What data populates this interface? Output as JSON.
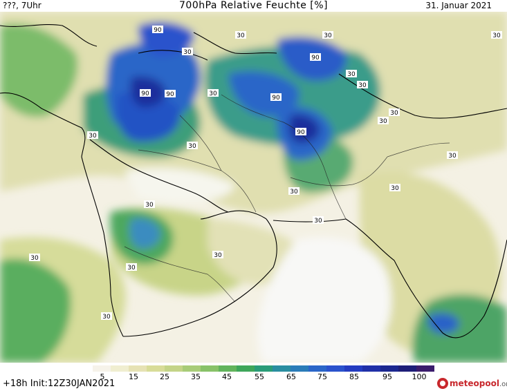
{
  "header": {
    "left": "???, 7Uhr",
    "title": "700hPa Relative Feuchte [%]",
    "date": "31. Januar 2021"
  },
  "footer": {
    "init": "+18h  Init:12Z30JAN2021"
  },
  "logo": {
    "name": "meteopool",
    "domain": ".org",
    "icon": "meteopool-logo-icon"
  },
  "colorbar": {
    "ticks": [
      "5",
      "15",
      "25",
      "35",
      "45",
      "55",
      "65",
      "75",
      "85",
      "95",
      "100"
    ],
    "colors": [
      "#ffffff",
      "#f6f3ea",
      "#f0eed0",
      "#e6e2b4",
      "#d8dc98",
      "#c4d488",
      "#a8cc78",
      "#88c268",
      "#62b45c",
      "#3ea65a",
      "#2a9c78",
      "#2a8ea0",
      "#2a7cb8",
      "#2a66c8",
      "#2a52cc",
      "#243cc0",
      "#2030a8",
      "#1c2890",
      "#1e1e78",
      "#3a1c6c"
    ]
  },
  "map": {
    "contour_labels": [
      "90",
      "90",
      "30",
      "30",
      "90",
      "30",
      "90",
      "30",
      "90",
      "90",
      "30",
      "30",
      "30",
      "30",
      "30",
      "30",
      "30",
      "30",
      "30",
      "30",
      "30",
      "30",
      "30",
      "30",
      "30",
      "30"
    ]
  }
}
